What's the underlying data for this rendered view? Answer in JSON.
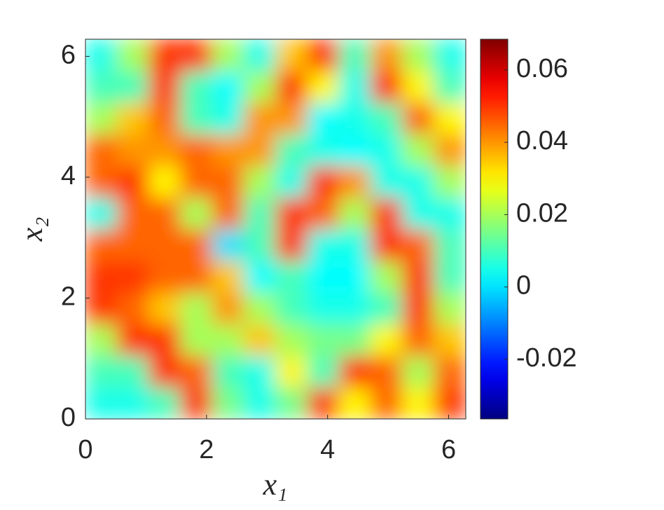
{
  "chart_data": {
    "type": "heatmap",
    "xlabel": "x₁",
    "ylabel": "x₂",
    "xlim": [
      0,
      6.2832
    ],
    "ylim": [
      0,
      6.2832
    ],
    "xticks": [
      0,
      2,
      4,
      6
    ],
    "yticks": [
      0,
      2,
      4,
      6
    ],
    "colormap": "jet",
    "clim": [
      -0.0365,
      0.0685
    ],
    "cticks": [
      -0.02,
      0,
      0.02,
      0.04,
      0.06
    ],
    "z": [
      [
        0.005,
        0.005,
        0.01,
        0.05,
        0.015,
        0.005,
        0.015,
        0.05,
        0.03,
        0.045,
        0.03,
        0.05
      ],
      [
        0.01,
        0.01,
        0.05,
        0.045,
        0.01,
        0.005,
        0.03,
        0.01,
        0.05,
        0.045,
        0.02,
        0.045
      ],
      [
        0.02,
        0.05,
        0.05,
        0.02,
        0.02,
        0.035,
        0.02,
        0.015,
        0.015,
        0.03,
        0.045,
        0.035
      ],
      [
        0.05,
        0.045,
        0.035,
        0.02,
        0.04,
        0.02,
        0.01,
        0.005,
        0.005,
        0.01,
        0.05,
        0.02
      ],
      [
        0.05,
        0.05,
        0.045,
        0.045,
        0.035,
        0.003,
        0.01,
        0.003,
        0.003,
        0.02,
        0.05,
        0.01
      ],
      [
        0.045,
        0.045,
        0.045,
        0.045,
        0.0,
        0.01,
        0.05,
        0.005,
        0.005,
        0.05,
        0.045,
        0.01
      ],
      [
        0.005,
        0.045,
        0.045,
        0.02,
        0.045,
        0.01,
        0.05,
        0.045,
        0.02,
        0.05,
        0.005,
        0.005
      ],
      [
        0.045,
        0.05,
        0.03,
        0.045,
        0.045,
        0.02,
        0.005,
        0.05,
        0.04,
        0.005,
        0.005,
        0.02
      ],
      [
        0.045,
        0.04,
        0.04,
        0.045,
        0.04,
        0.04,
        0.01,
        0.005,
        0.003,
        0.005,
        0.02,
        0.04
      ],
      [
        0.02,
        0.035,
        0.045,
        0.01,
        0.005,
        0.04,
        0.04,
        0.003,
        0.005,
        0.01,
        0.045,
        0.03
      ],
      [
        0.01,
        0.01,
        0.05,
        0.01,
        0.003,
        0.02,
        0.05,
        0.03,
        0.005,
        0.05,
        0.03,
        0.01
      ],
      [
        0.005,
        0.02,
        0.05,
        0.05,
        0.02,
        0.005,
        0.035,
        0.05,
        0.01,
        0.04,
        0.02,
        0.005
      ]
    ]
  }
}
